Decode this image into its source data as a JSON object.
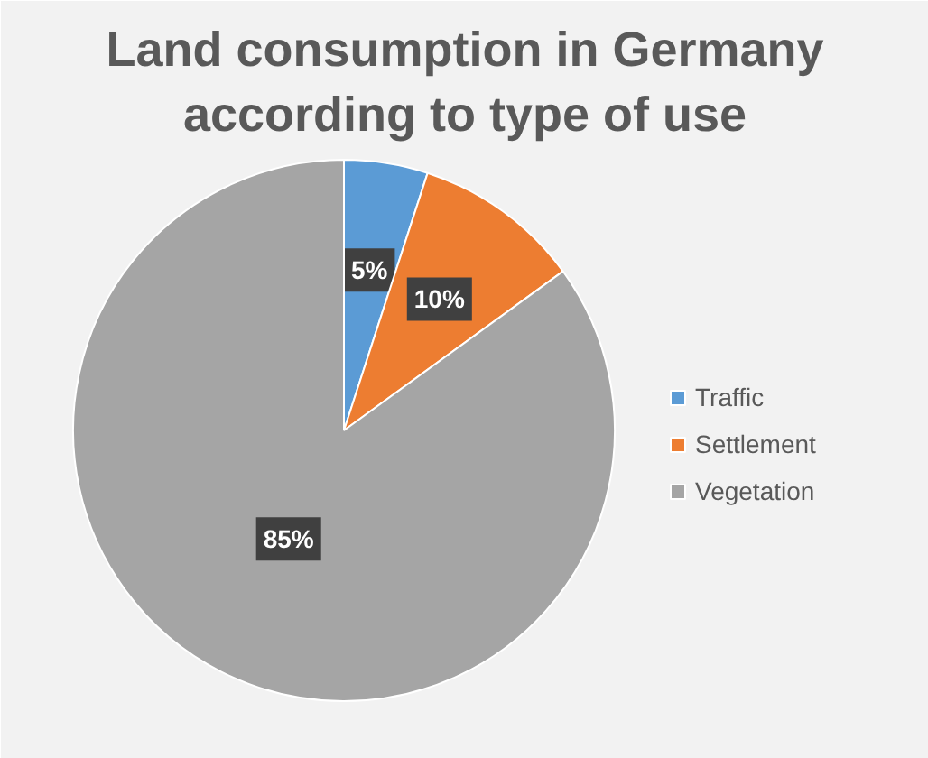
{
  "chart_data": {
    "type": "pie",
    "title": "Land consumption in Germany according to type of use",
    "categories": [
      "Traffic",
      "Settlement",
      "Vegetation"
    ],
    "values": [
      5,
      10,
      85
    ],
    "colors": [
      "#5b9bd5",
      "#ed7d31",
      "#a5a5a5"
    ],
    "value_labels": [
      "5%",
      "10%",
      "85%"
    ],
    "legend": "right"
  }
}
